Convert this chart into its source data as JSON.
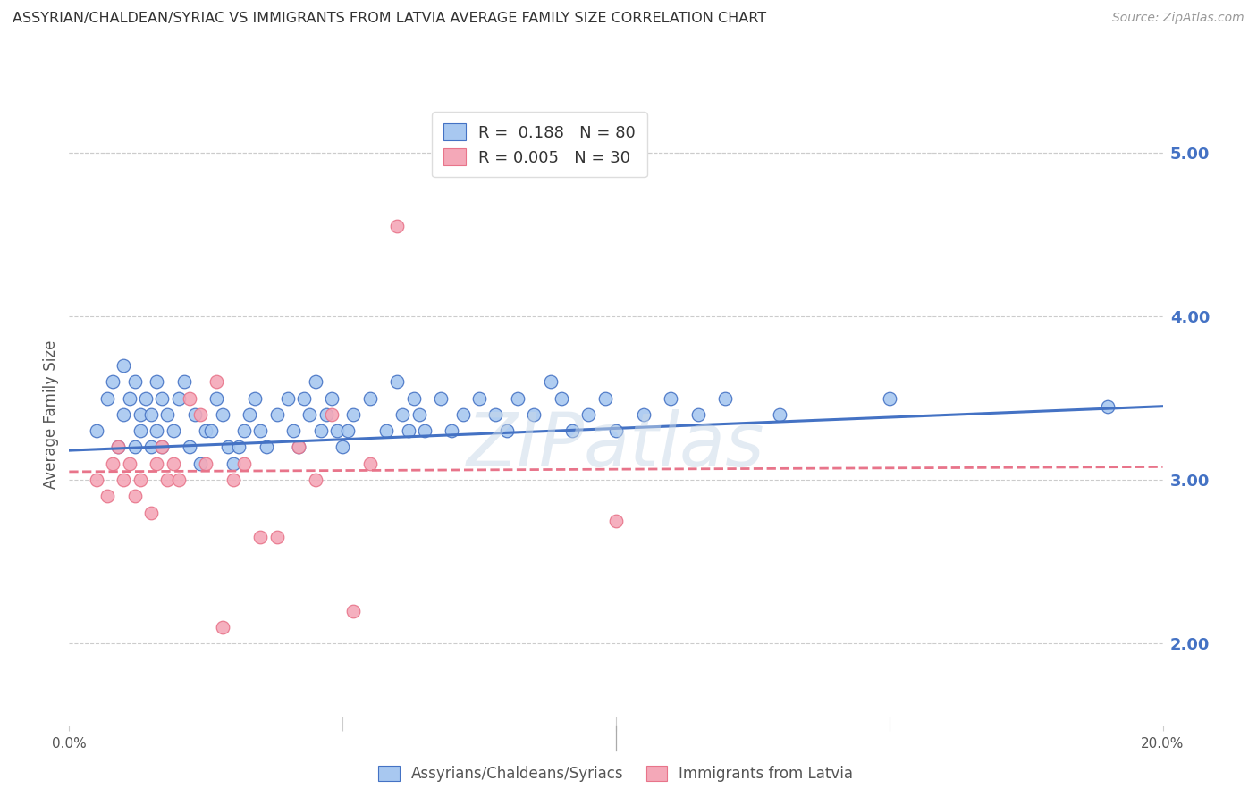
{
  "title": "ASSYRIAN/CHALDEAN/SYRIAC VS IMMIGRANTS FROM LATVIA AVERAGE FAMILY SIZE CORRELATION CHART",
  "source": "Source: ZipAtlas.com",
  "ylabel": "Average Family Size",
  "yticks": [
    2.0,
    3.0,
    4.0,
    5.0
  ],
  "xlim": [
    0.0,
    0.2
  ],
  "ylim": [
    1.5,
    5.3
  ],
  "blue_color": "#A8C8F0",
  "pink_color": "#F4A8B8",
  "blue_line_color": "#4472C4",
  "pink_line_color": "#E8748A",
  "watermark": "ZIPatlas",
  "blue_scatter_x": [
    0.005,
    0.007,
    0.008,
    0.009,
    0.01,
    0.01,
    0.011,
    0.012,
    0.012,
    0.013,
    0.013,
    0.014,
    0.015,
    0.015,
    0.016,
    0.016,
    0.017,
    0.017,
    0.018,
    0.019,
    0.02,
    0.021,
    0.022,
    0.023,
    0.024,
    0.025,
    0.026,
    0.027,
    0.028,
    0.029,
    0.03,
    0.031,
    0.032,
    0.033,
    0.034,
    0.035,
    0.036,
    0.038,
    0.04,
    0.041,
    0.042,
    0.043,
    0.044,
    0.045,
    0.046,
    0.047,
    0.048,
    0.049,
    0.05,
    0.051,
    0.052,
    0.055,
    0.058,
    0.06,
    0.061,
    0.062,
    0.063,
    0.064,
    0.065,
    0.068,
    0.07,
    0.072,
    0.075,
    0.078,
    0.08,
    0.082,
    0.085,
    0.088,
    0.09,
    0.092,
    0.095,
    0.098,
    0.1,
    0.105,
    0.11,
    0.115,
    0.12,
    0.13,
    0.15,
    0.19
  ],
  "blue_scatter_y": [
    3.3,
    3.5,
    3.6,
    3.2,
    3.4,
    3.7,
    3.5,
    3.6,
    3.2,
    3.4,
    3.3,
    3.5,
    3.2,
    3.4,
    3.6,
    3.3,
    3.5,
    3.2,
    3.4,
    3.3,
    3.5,
    3.6,
    3.2,
    3.4,
    3.1,
    3.3,
    3.3,
    3.5,
    3.4,
    3.2,
    3.1,
    3.2,
    3.3,
    3.4,
    3.5,
    3.3,
    3.2,
    3.4,
    3.5,
    3.3,
    3.2,
    3.5,
    3.4,
    3.6,
    3.3,
    3.4,
    3.5,
    3.3,
    3.2,
    3.3,
    3.4,
    3.5,
    3.3,
    3.6,
    3.4,
    3.3,
    3.5,
    3.4,
    3.3,
    3.5,
    3.3,
    3.4,
    3.5,
    3.4,
    3.3,
    3.5,
    3.4,
    3.6,
    3.5,
    3.3,
    3.4,
    3.5,
    3.3,
    3.4,
    3.5,
    3.4,
    3.5,
    3.4,
    3.5,
    3.45
  ],
  "pink_scatter_x": [
    0.005,
    0.007,
    0.008,
    0.009,
    0.01,
    0.011,
    0.012,
    0.013,
    0.015,
    0.016,
    0.017,
    0.018,
    0.019,
    0.02,
    0.022,
    0.024,
    0.025,
    0.027,
    0.028,
    0.03,
    0.032,
    0.035,
    0.038,
    0.042,
    0.045,
    0.048,
    0.052,
    0.055,
    0.1,
    0.06
  ],
  "pink_scatter_y": [
    3.0,
    2.9,
    3.1,
    3.2,
    3.0,
    3.1,
    2.9,
    3.0,
    2.8,
    3.1,
    3.2,
    3.0,
    3.1,
    3.0,
    3.5,
    3.4,
    3.1,
    3.6,
    2.1,
    3.0,
    3.1,
    2.65,
    2.65,
    3.2,
    3.0,
    3.4,
    2.2,
    3.1,
    2.75,
    4.55
  ],
  "blue_trend_x": [
    0.0,
    0.2
  ],
  "blue_trend_y": [
    3.18,
    3.45
  ],
  "pink_trend_x": [
    0.0,
    0.2
  ],
  "pink_trend_y": [
    3.05,
    3.08
  ]
}
